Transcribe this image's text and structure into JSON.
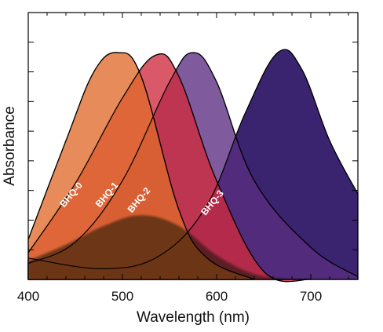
{
  "chart_data": {
    "type": "area",
    "title": "",
    "xlabel": "Wavelength (nm)",
    "ylabel": "Absorbance",
    "xlim": [
      400,
      750
    ],
    "ylim": [
      0,
      1
    ],
    "x_ticks": [
      400,
      500,
      600,
      700
    ],
    "x_tick_labels": [
      "400",
      "500",
      "600",
      "700"
    ],
    "y_tick_labels_shown": false,
    "grid": false,
    "legend": "none",
    "series": [
      {
        "name": "BHQ-3",
        "color": "#3a2470",
        "points": [
          [
            400,
            0.08
          ],
          [
            480,
            0.04
          ],
          [
            540,
            0.09
          ],
          [
            590,
            0.28
          ],
          [
            630,
            0.62
          ],
          [
            665,
            0.85
          ],
          [
            690,
            0.79
          ],
          [
            720,
            0.52
          ],
          [
            750,
            0.32
          ]
        ]
      },
      {
        "name": "BHQ-2",
        "color": "#5b2d82",
        "points": [
          [
            400,
            0.06
          ],
          [
            450,
            0.14
          ],
          [
            500,
            0.37
          ],
          [
            550,
            0.74
          ],
          [
            575,
            0.85
          ],
          [
            600,
            0.74
          ],
          [
            640,
            0.37
          ],
          [
            700,
            0.12
          ],
          [
            750,
            0.01
          ]
        ]
      },
      {
        "name": "BHQ-1",
        "color": "#cf2a3e",
        "points": [
          [
            400,
            0.1
          ],
          [
            450,
            0.36
          ],
          [
            500,
            0.68
          ],
          [
            535,
            0.84
          ],
          [
            560,
            0.76
          ],
          [
            600,
            0.37
          ],
          [
            650,
            0.03
          ],
          [
            700,
            0.0
          ]
        ]
      },
      {
        "name": "BHQ-0",
        "color": "#df6a2a",
        "points": [
          [
            400,
            0.15
          ],
          [
            440,
            0.52
          ],
          [
            470,
            0.78
          ],
          [
            495,
            0.85
          ],
          [
            520,
            0.76
          ],
          [
            560,
            0.26
          ],
          [
            590,
            0.08
          ],
          [
            640,
            0.0
          ]
        ]
      }
    ],
    "annotations": [
      {
        "text": "BHQ-0",
        "x": 448,
        "y": 0.31
      },
      {
        "text": "BHQ-1",
        "x": 486,
        "y": 0.31
      },
      {
        "text": "BHQ-2",
        "x": 520,
        "y": 0.29
      },
      {
        "text": "BHQ-3",
        "x": 598,
        "y": 0.28
      }
    ]
  }
}
